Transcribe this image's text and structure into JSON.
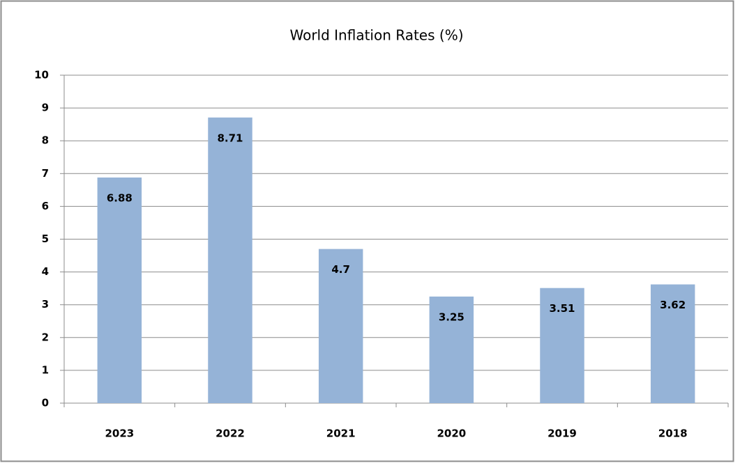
{
  "chart_data": {
    "type": "bar",
    "title": "World Inflation Rates (%)",
    "categories": [
      "2023",
      "2022",
      "2021",
      "2020",
      "2019",
      "2018"
    ],
    "values": [
      6.88,
      8.71,
      4.7,
      3.25,
      3.51,
      3.62
    ],
    "color": "#95b3d7",
    "ylim": [
      0,
      10
    ],
    "yticks": [
      0,
      1,
      2,
      3,
      4,
      5,
      6,
      7,
      8,
      9,
      10
    ],
    "grid": true
  }
}
